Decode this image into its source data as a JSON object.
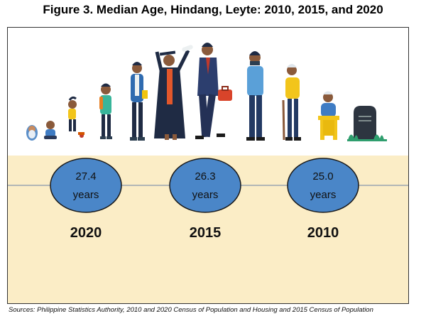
{
  "chart_data": {
    "type": "bubble-timeline",
    "title": "Figure 3. Median Age, Hindang, Leyte: 2010, 2015, and 2020",
    "unit": "years",
    "points": [
      {
        "year": "2020",
        "value": "27.4",
        "unit": "years"
      },
      {
        "year": "2015",
        "value": "26.3",
        "unit": "years"
      },
      {
        "year": "2010",
        "value": "25.0",
        "unit": "years"
      }
    ],
    "illustration": "life-stages-figures"
  },
  "source": "Sources: Philippine Statistics Authority, 2010 and 2020 Census of Population and Housing and 2015 Census of Population",
  "colors": {
    "band": "#fbedc6",
    "bubble_fill": "#4a86c8",
    "bubble_stroke": "#1a1a1a",
    "timeline": "#9aa5b1"
  }
}
